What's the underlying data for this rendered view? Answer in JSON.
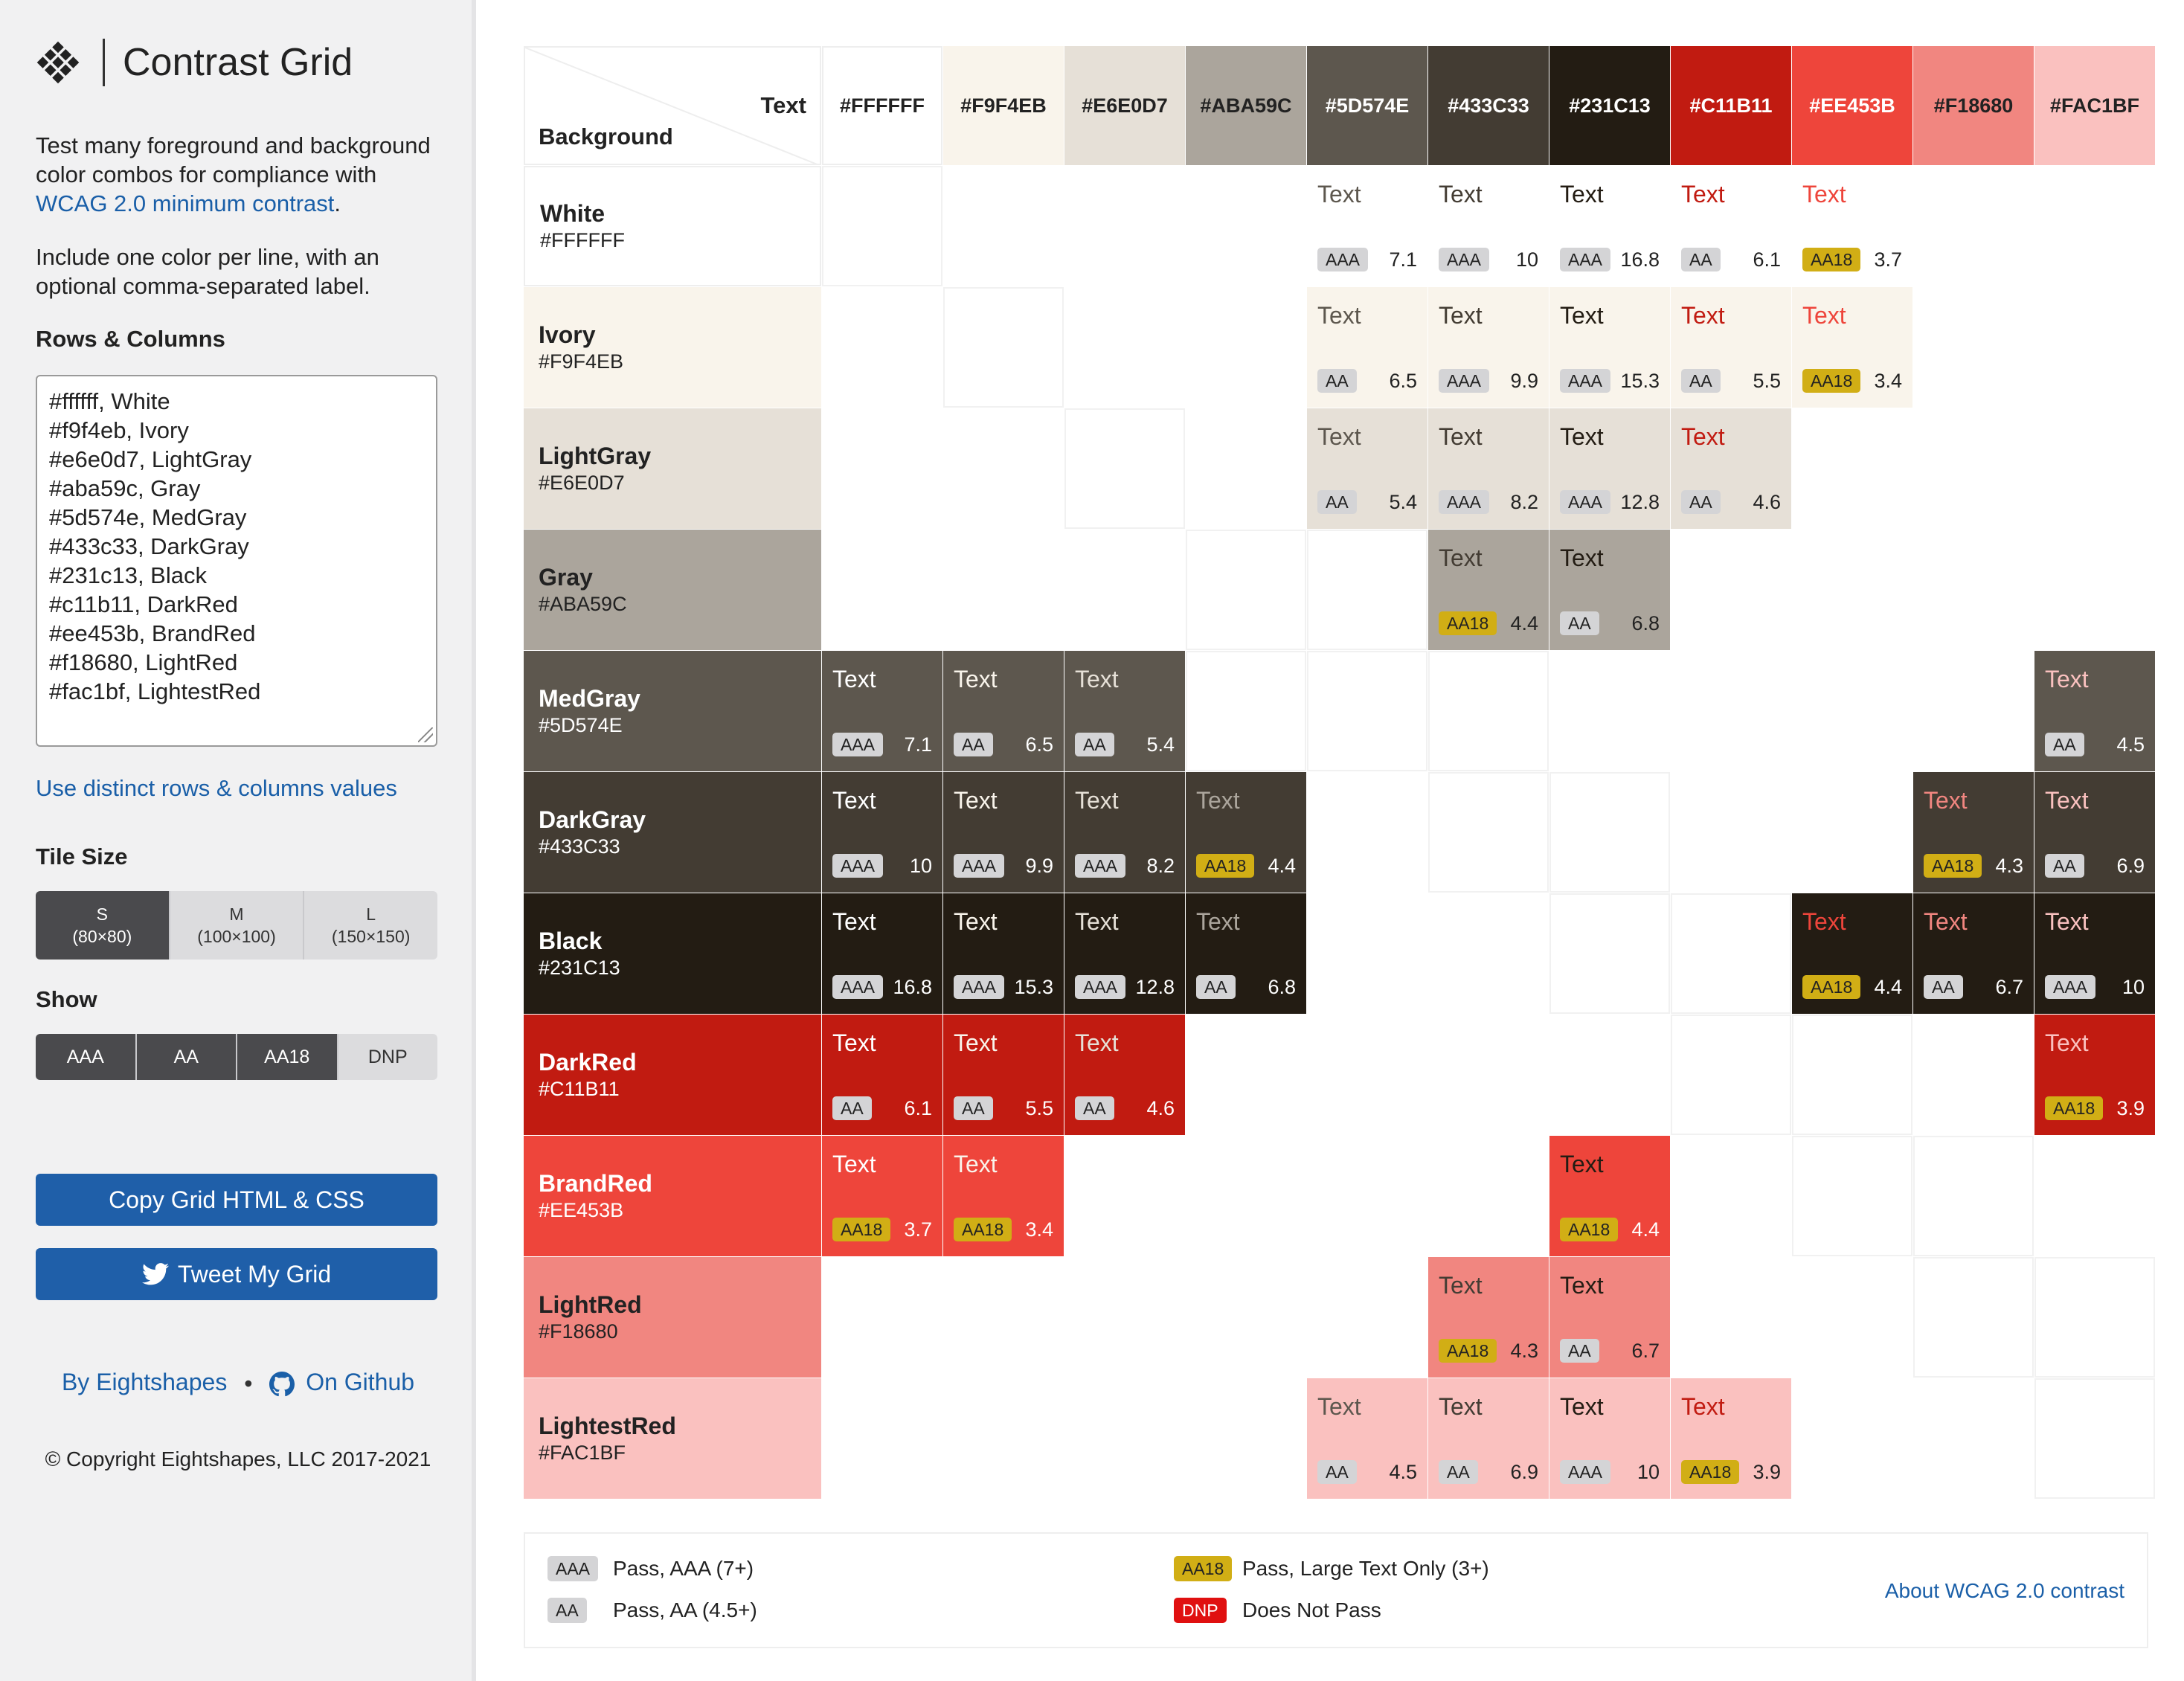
{
  "sidebar": {
    "title": "Contrast Grid",
    "description_parts": [
      "Test many foreground and background color combos for compliance with ",
      "WCAG 2.0 minimum contrast",
      "."
    ],
    "instructions": "Include one color per line, with an optional comma-separated label.",
    "rows_columns_heading": "Rows & Columns",
    "textarea_lines": [
      "#ffffff, White",
      "#f9f4eb, Ivory",
      "#e6e0d7, LightGray",
      "#aba59c, Gray",
      "#5d574e, MedGray",
      "#433c33, DarkGray",
      "#231c13, Black",
      "#c11b11, DarkRed",
      "#ee453b, BrandRed",
      "#f18680, LightRed",
      "#fac1bf, LightestRed"
    ],
    "distinct_link": "Use distinct rows & columns values",
    "tile_size_heading": "Tile Size",
    "tile_sizes": [
      {
        "label": "S",
        "sub": "(80×80)",
        "active": true
      },
      {
        "label": "M",
        "sub": "(100×100)",
        "active": false
      },
      {
        "label": "L",
        "sub": "(150×150)",
        "active": false
      }
    ],
    "show_heading": "Show",
    "show_options": [
      {
        "label": "AAA",
        "active": true
      },
      {
        "label": "AA",
        "active": true
      },
      {
        "label": "AA18",
        "active": true
      },
      {
        "label": "DNP",
        "active": false
      }
    ],
    "copy_button": "Copy Grid HTML & CSS",
    "tweet_button": "Tweet My Grid",
    "by_link": "By Eightshapes",
    "github_link": "On Github",
    "copyright": "© Copyright Eightshapes, LLC 2017-2021"
  },
  "grid": {
    "corner_text": "Text",
    "corner_background": "Background",
    "columns": [
      {
        "hex": "#FFFFFF",
        "color": "#ffffff"
      },
      {
        "hex": "#F9F4EB",
        "color": "#f9f4eb"
      },
      {
        "hex": "#E6E0D7",
        "color": "#e6e0d7"
      },
      {
        "hex": "#ABA59C",
        "color": "#aba59c"
      },
      {
        "hex": "#5D574E",
        "color": "#5d574e"
      },
      {
        "hex": "#433C33",
        "color": "#433c33"
      },
      {
        "hex": "#231C13",
        "color": "#231c13"
      },
      {
        "hex": "#C11B11",
        "color": "#c11b11"
      },
      {
        "hex": "#EE453B",
        "color": "#ee453b"
      },
      {
        "hex": "#F18680",
        "color": "#f18680"
      },
      {
        "hex": "#FAC1BF",
        "color": "#fac1bf"
      }
    ],
    "rows": [
      {
        "name": "White",
        "hex": "#FFFFFF",
        "color": "#ffffff",
        "dark": false,
        "cells": [
          "empty",
          null,
          null,
          null,
          {
            "badge": "AAA",
            "ratio": "7.1"
          },
          {
            "badge": "AAA",
            "ratio": "10"
          },
          {
            "badge": "AAA",
            "ratio": "16.8"
          },
          {
            "badge": "AA",
            "ratio": "6.1"
          },
          {
            "badge": "AA18",
            "ratio": "3.7"
          },
          null,
          null
        ]
      },
      {
        "name": "Ivory",
        "hex": "#F9F4EB",
        "color": "#f9f4eb",
        "dark": false,
        "cells": [
          null,
          "empty",
          null,
          null,
          {
            "badge": "AA",
            "ratio": "6.5"
          },
          {
            "badge": "AAA",
            "ratio": "9.9"
          },
          {
            "badge": "AAA",
            "ratio": "15.3"
          },
          {
            "badge": "AA",
            "ratio": "5.5"
          },
          {
            "badge": "AA18",
            "ratio": "3.4"
          },
          null,
          null
        ]
      },
      {
        "name": "LightGray",
        "hex": "#E6E0D7",
        "color": "#e6e0d7",
        "dark": false,
        "cells": [
          null,
          null,
          "empty",
          null,
          {
            "badge": "AA",
            "ratio": "5.4"
          },
          {
            "badge": "AAA",
            "ratio": "8.2"
          },
          {
            "badge": "AAA",
            "ratio": "12.8"
          },
          {
            "badge": "AA",
            "ratio": "4.6"
          },
          null,
          null,
          null
        ]
      },
      {
        "name": "Gray",
        "hex": "#ABA59C",
        "color": "#aba59c",
        "dark": false,
        "cells": [
          null,
          null,
          null,
          "empty",
          "empty",
          {
            "badge": "AA18",
            "ratio": "4.4"
          },
          {
            "badge": "AA",
            "ratio": "6.8"
          },
          null,
          null,
          null,
          null
        ]
      },
      {
        "name": "MedGray",
        "hex": "#5D574E",
        "color": "#5d574e",
        "dark": true,
        "cells": [
          {
            "badge": "AAA",
            "ratio": "7.1"
          },
          {
            "badge": "AA",
            "ratio": "6.5"
          },
          {
            "badge": "AA",
            "ratio": "5.4"
          },
          "empty",
          "empty",
          "empty",
          null,
          null,
          null,
          null,
          {
            "badge": "AA",
            "ratio": "4.5"
          }
        ]
      },
      {
        "name": "DarkGray",
        "hex": "#433C33",
        "color": "#433c33",
        "dark": true,
        "cells": [
          {
            "badge": "AAA",
            "ratio": "10"
          },
          {
            "badge": "AAA",
            "ratio": "9.9"
          },
          {
            "badge": "AAA",
            "ratio": "8.2"
          },
          {
            "badge": "AA18",
            "ratio": "4.4"
          },
          null,
          "empty",
          "empty",
          null,
          null,
          {
            "badge": "AA18",
            "ratio": "4.3"
          },
          {
            "badge": "AA",
            "ratio": "6.9"
          }
        ]
      },
      {
        "name": "Black",
        "hex": "#231C13",
        "color": "#231c13",
        "dark": true,
        "cells": [
          {
            "badge": "AAA",
            "ratio": "16.8"
          },
          {
            "badge": "AAA",
            "ratio": "15.3"
          },
          {
            "badge": "AAA",
            "ratio": "12.8"
          },
          {
            "badge": "AA",
            "ratio": "6.8"
          },
          null,
          null,
          "empty",
          "empty",
          {
            "badge": "AA18",
            "ratio": "4.4"
          },
          {
            "badge": "AA",
            "ratio": "6.7"
          },
          {
            "badge": "AAA",
            "ratio": "10"
          }
        ]
      },
      {
        "name": "DarkRed",
        "hex": "#C11B11",
        "color": "#c11b11",
        "dark": true,
        "cells": [
          {
            "badge": "AA",
            "ratio": "6.1"
          },
          {
            "badge": "AA",
            "ratio": "5.5"
          },
          {
            "badge": "AA",
            "ratio": "4.6"
          },
          null,
          null,
          null,
          null,
          "empty",
          "empty",
          null,
          {
            "badge": "AA18",
            "ratio": "3.9"
          }
        ]
      },
      {
        "name": "BrandRed",
        "hex": "#EE453B",
        "color": "#ee453b",
        "dark": true,
        "cells": [
          {
            "badge": "AA18",
            "ratio": "3.7"
          },
          {
            "badge": "AA18",
            "ratio": "3.4"
          },
          null,
          null,
          null,
          null,
          {
            "badge": "AA18",
            "ratio": "4.4"
          },
          null,
          "empty",
          "empty",
          null
        ]
      },
      {
        "name": "LightRed",
        "hex": "#F18680",
        "color": "#f18680",
        "dark": false,
        "cells": [
          null,
          null,
          null,
          null,
          null,
          {
            "badge": "AA18",
            "ratio": "4.3"
          },
          {
            "badge": "AA",
            "ratio": "6.7"
          },
          null,
          null,
          "empty",
          "empty"
        ]
      },
      {
        "name": "LightestRed",
        "hex": "#FAC1BF",
        "color": "#fac1bf",
        "dark": false,
        "cells": [
          null,
          null,
          null,
          null,
          {
            "badge": "AA",
            "ratio": "4.5"
          },
          {
            "badge": "AA",
            "ratio": "6.9"
          },
          {
            "badge": "AAA",
            "ratio": "10"
          },
          {
            "badge": "AA18",
            "ratio": "3.9"
          },
          null,
          null,
          "empty"
        ]
      }
    ],
    "cell_text": "Text"
  },
  "legend": {
    "items": [
      {
        "badge": "AAA",
        "text": "Pass, AAA (7+)",
        "color": "#d4d4d6"
      },
      {
        "badge": "AA",
        "text": "Pass, AA (4.5+)",
        "color": "#d4d4d6"
      },
      {
        "badge": "AA18",
        "text": "Pass, Large Text Only (3+)",
        "color": "#d1ae15"
      },
      {
        "badge": "DNP",
        "text": "Does Not Pass",
        "color": "#e01010"
      }
    ],
    "about_link": "About WCAG 2.0 contrast"
  },
  "colors": {
    "accent": "#1f5fa9",
    "link": "#1a5fa8",
    "aa18": "#d1ae15",
    "dnp": "#e01010"
  }
}
